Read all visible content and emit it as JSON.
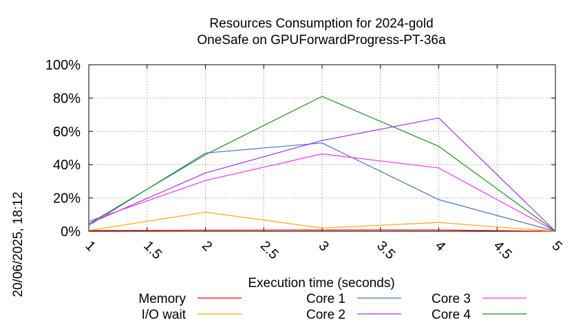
{
  "chart_data": {
    "type": "line",
    "title_line1": "Resources Consumption for 2024-gold",
    "title_line2": "OneSafe on GPUForwardProgress-PT-36a",
    "xlabel": "Execution time (seconds)",
    "ylabel": "",
    "side_label": "20/06/2025, 18:12",
    "xlim": [
      1,
      5
    ],
    "ylim": [
      0,
      100
    ],
    "x_ticks": [
      "1",
      "1.5",
      "2",
      "2.5",
      "3",
      "3.5",
      "4",
      "4.5",
      "5"
    ],
    "y_ticks": [
      "0%",
      "20%",
      "40%",
      "60%",
      "80%",
      "100%"
    ],
    "grid": true,
    "legend_position": "bottom",
    "x": [
      1,
      2,
      3,
      4,
      5
    ],
    "series": [
      {
        "name": "Memory",
        "color": "#ff0000",
        "values": [
          0.5,
          0.7,
          0.8,
          0.8,
          0
        ]
      },
      {
        "name": "I/O wait",
        "color": "#ffa500",
        "values": [
          0.5,
          11.5,
          2,
          5.3,
          0
        ]
      },
      {
        "name": "Core 1",
        "color": "#4472c4",
        "values": [
          3.5,
          47,
          53,
          19,
          0
        ]
      },
      {
        "name": "Core 2",
        "color": "#9b30ff",
        "values": [
          4.5,
          35,
          54.5,
          68,
          0
        ]
      },
      {
        "name": "Core 3",
        "color": "#ff30ff",
        "values": [
          6,
          30.5,
          46.5,
          38,
          0
        ]
      },
      {
        "name": "Core 4",
        "color": "#228b22",
        "values": [
          4.5,
          46,
          81,
          51,
          0
        ]
      }
    ]
  }
}
